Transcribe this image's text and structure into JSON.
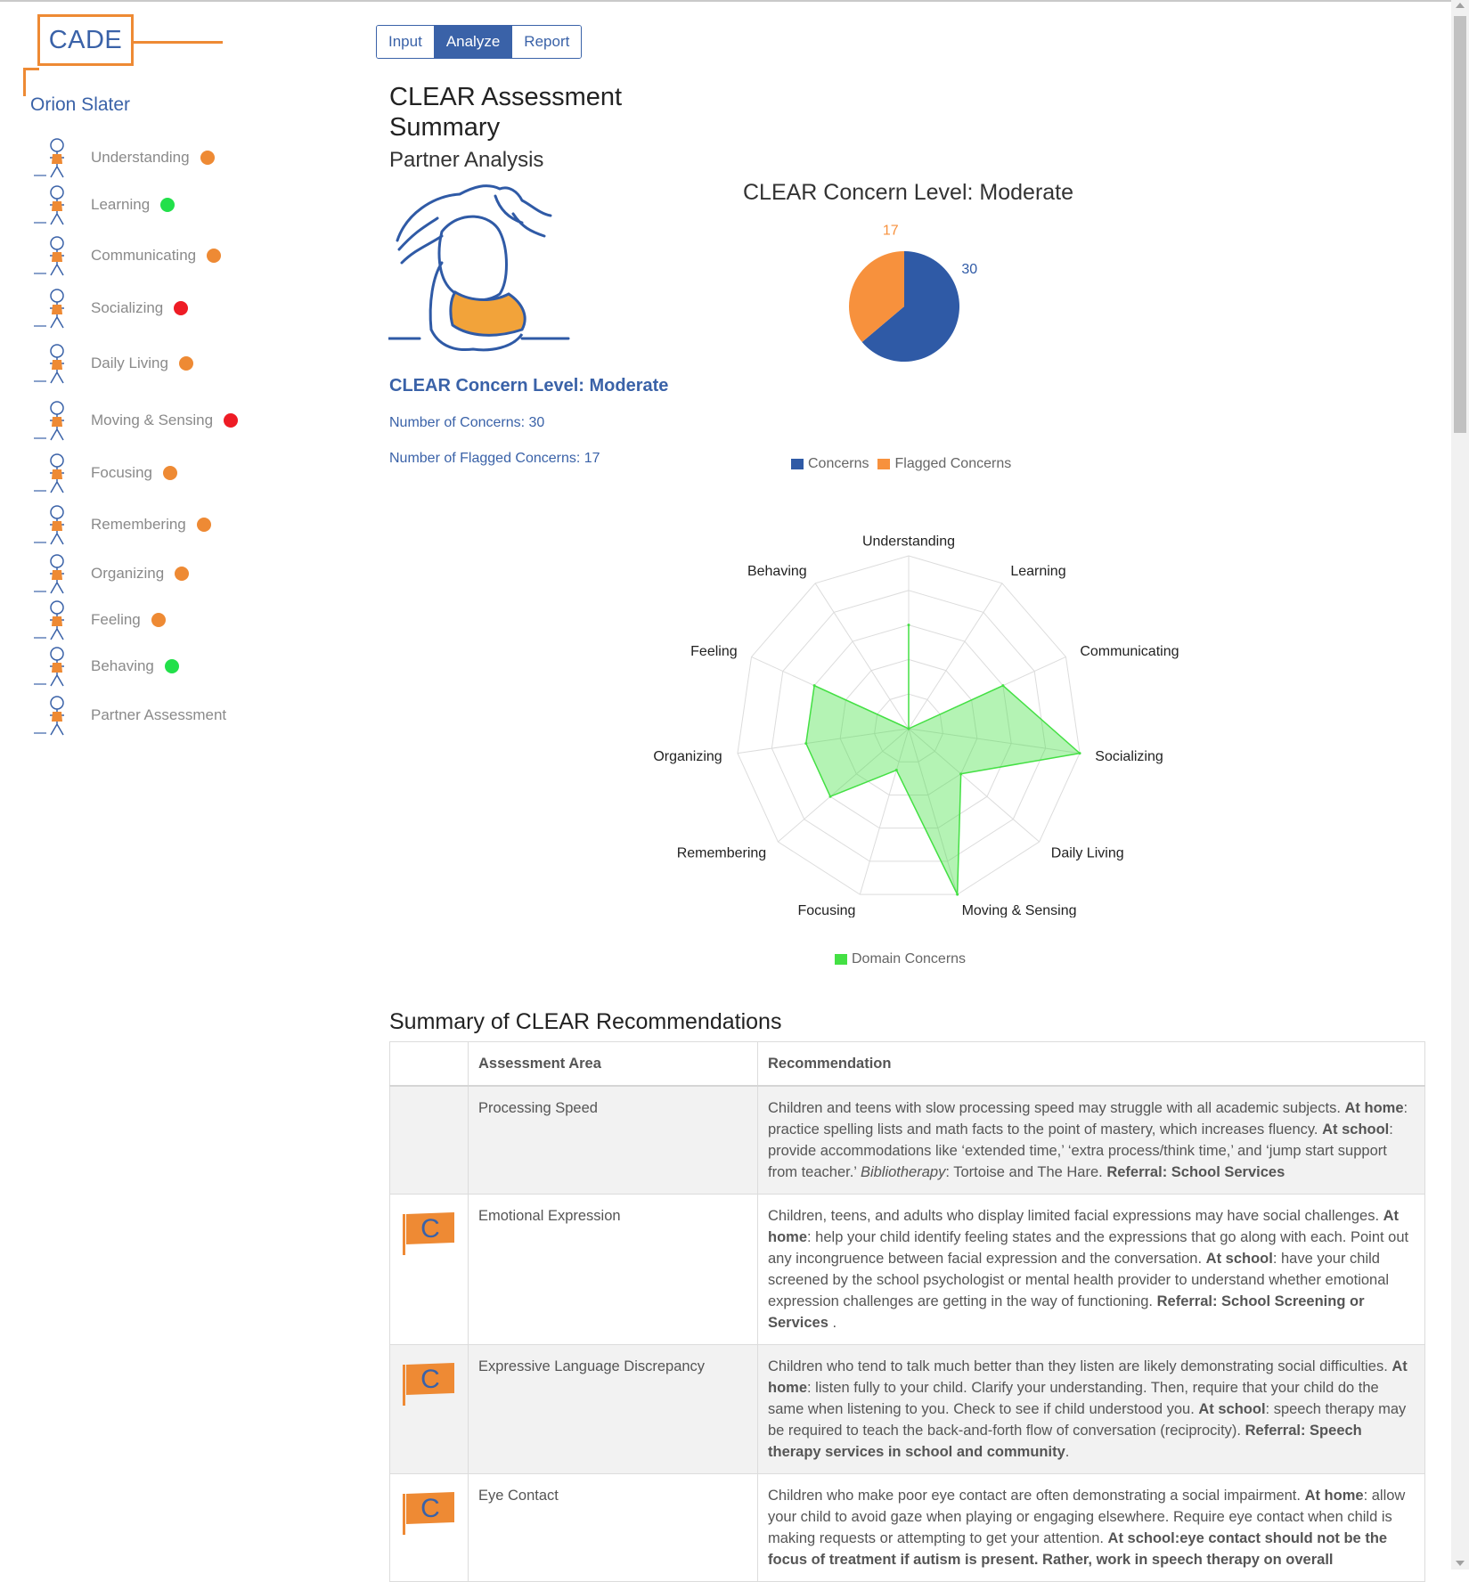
{
  "app": {
    "logo_text": "CADE",
    "user_name": "Orion Slater"
  },
  "tabs": [
    {
      "label": "Input",
      "active": false
    },
    {
      "label": "Analyze",
      "active": true
    },
    {
      "label": "Report",
      "active": false
    }
  ],
  "sidebar": {
    "items": [
      {
        "label": "Understanding",
        "status": "orange",
        "icon": "understanding-figure-icon"
      },
      {
        "label": "Learning",
        "status": "green",
        "icon": "learning-figure-icon"
      },
      {
        "label": "Communicating",
        "status": "orange",
        "icon": "communicating-figure-icon"
      },
      {
        "label": "Socializing",
        "status": "red",
        "icon": "socializing-figure-icon"
      },
      {
        "label": "Daily Living",
        "status": "orange",
        "icon": "daily-living-figure-icon"
      },
      {
        "label": "Moving & Sensing",
        "status": "red",
        "icon": "moving-sensing-figure-icon"
      },
      {
        "label": "Focusing",
        "status": "orange",
        "icon": "focusing-figure-icon"
      },
      {
        "label": "Remembering",
        "status": "orange",
        "icon": "remembering-figure-icon"
      },
      {
        "label": "Organizing",
        "status": "orange",
        "icon": "organizing-figure-icon"
      },
      {
        "label": "Feeling",
        "status": "orange",
        "icon": "feeling-figure-icon"
      },
      {
        "label": "Behaving",
        "status": "green",
        "icon": "behaving-figure-icon"
      },
      {
        "label": "Partner Assessment",
        "status": "",
        "icon": "partner-assessment-figure-icon"
      }
    ]
  },
  "status_colors": {
    "orange": "#ee8a34",
    "green": "#22e04a",
    "red": "#ee1c25"
  },
  "summary": {
    "title": "CLEAR Assessment Summary",
    "subtitle": "Partner Analysis",
    "concern_level": "CLEAR Concern Level: Moderate",
    "num_concerns": "Number of Concerns: 30",
    "num_flagged": "Number of Flagged Concerns: 17"
  },
  "chart_data": [
    {
      "type": "pie",
      "title": "CLEAR Concern Level: Moderate",
      "categories": [
        "Concerns",
        "Flagged Concerns"
      ],
      "values": [
        30,
        17
      ],
      "colors": [
        "#2f5aa6",
        "#f7913d"
      ],
      "legend": "bottom"
    },
    {
      "type": "radar",
      "categories": [
        "Understanding",
        "Learning",
        "Communicating",
        "Socializing",
        "Daily Living",
        "Moving & Sensing",
        "Focusing",
        "Remembering",
        "Organizing",
        "Feeling",
        "Behaving"
      ],
      "series": [
        {
          "name": "Domain Concerns",
          "values": [
            0.6,
            0,
            0.6,
            1.0,
            0.4,
            1.0,
            0.25,
            0.6,
            0.6,
            0.6,
            0
          ],
          "color": "#44e044"
        }
      ],
      "rlim": [
        0,
        1
      ],
      "grid": true,
      "legend": "bottom"
    }
  ],
  "recommendations": {
    "title": "Summary of CLEAR Recommendations",
    "headers": [
      "",
      "Assessment Area",
      "Recommendation"
    ],
    "flag_letter": "C",
    "rows": [
      {
        "flag": false,
        "area": "Processing Speed",
        "html": "Children and teens with slow processing speed may struggle with all academic subjects. <b>At home</b>: practice spelling lists and math facts to the point of mastery, which increases fluency. <b>At school</b>: provide accommodations like ‘extended time,’ ‘extra process/think time,’ and ‘jump start support from teacher.’ <i>Bibliotherapy</i>: Tortoise and The Hare. <b>Referral: School Services</b>"
      },
      {
        "flag": true,
        "area": "Emotional Expression",
        "html": "Children, teens, and adults who display limited facial expressions may have social challenges. <b>At home</b>: help your child identify feeling states and the expressions that go along with each. Point out any incongruence between facial expression and the conversation. <b>At school</b>: have your child screened by the school psychologist or mental health provider to understand whether emotional expression challenges are getting in the way of functioning. <b>Referral: School Screening or Services</b> ."
      },
      {
        "flag": true,
        "area": "Expressive Language Discrepancy",
        "html": "Children who tend to talk much better than they listen are likely demonstrating social difficulties. <b>At home</b>: listen fully to your child. Clarify your understanding. Then, require that your child do the same when listening to you. Check to see if child understood you. <b>At school</b>: speech therapy may be required to teach the back-and-forth flow of conversation (reciprocity). <b>Referral: Speech therapy services in school and community</b>."
      },
      {
        "flag": true,
        "area": "Eye Contact",
        "html": "Children who make poor eye contact are often demonstrating a social impairment. <b>At home</b>: allow your child to avoid gaze when playing or engaging elsewhere. Require eye contact when child is making requests or attempting to get your attention. <b>At school:eye contact should not be the focus of treatment if autism is present. Rather, work in speech therapy on overall</b>"
      }
    ]
  }
}
